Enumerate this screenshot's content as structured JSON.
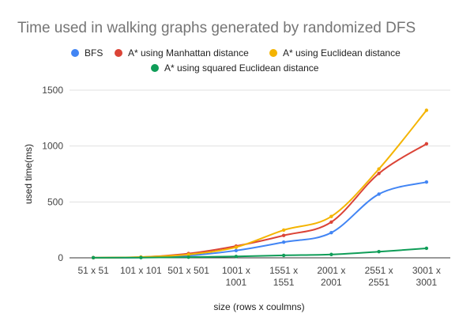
{
  "chart_data": {
    "type": "line",
    "title": "Time used in walking graphs generated by randomized DFS",
    "xlabel": "size (rows x coulmns)",
    "ylabel": "used time(ms)",
    "ylim": [
      0,
      1500
    ],
    "yticks": [
      0,
      500,
      1000,
      1500
    ],
    "grid": true,
    "legend": "top",
    "categories": [
      [
        "51 x 51"
      ],
      [
        "101 x 101"
      ],
      [
        "501 x 501"
      ],
      [
        "1001 x",
        "1001"
      ],
      [
        "1551 x",
        "1551"
      ],
      [
        "2001 x",
        "2001"
      ],
      [
        "2551 x",
        "2551"
      ],
      [
        "3001 x",
        "3001"
      ]
    ],
    "series": [
      {
        "name": "BFS",
        "color": "#4285f4",
        "values": [
          1,
          3,
          20,
          65,
          140,
          225,
          570,
          678
        ]
      },
      {
        "name": "A* using Manhattan distance",
        "color": "#db4437",
        "values": [
          1,
          6,
          38,
          105,
          200,
          320,
          755,
          1020
        ]
      },
      {
        "name": "A* using Euclidean distance",
        "color": "#f4b400",
        "values": [
          1,
          7,
          30,
          95,
          248,
          370,
          795,
          1320
        ]
      },
      {
        "name": "A* using squared Euclidean distance",
        "color": "#0f9d58",
        "values": [
          1,
          2,
          6,
          12,
          22,
          30,
          55,
          85
        ]
      }
    ]
  }
}
